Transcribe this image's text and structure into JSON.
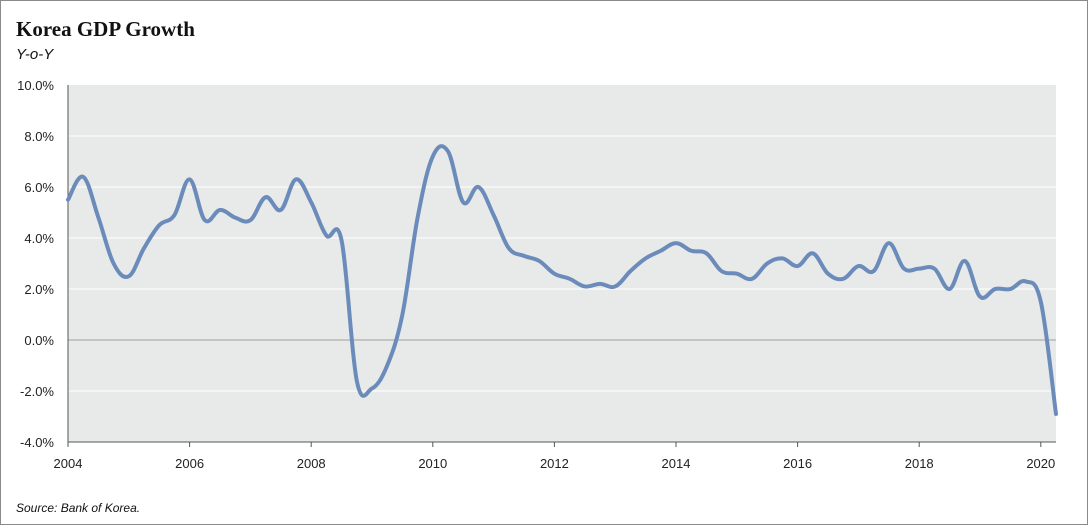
{
  "chart_data": {
    "type": "line",
    "title": "Korea GDP Growth",
    "subtitle": "Y-o-Y",
    "source": "Source: Bank of Korea.",
    "ylim": [
      -4,
      10
    ],
    "xlim": [
      2004,
      2020.25
    ],
    "grid": true,
    "y_ticks": [
      {
        "value": 10,
        "label": "10.0%"
      },
      {
        "value": 8,
        "label": "8.0%"
      },
      {
        "value": 6,
        "label": "6.0%"
      },
      {
        "value": 4,
        "label": "4.0%"
      },
      {
        "value": 2,
        "label": "2.0%"
      },
      {
        "value": 0,
        "label": "0.0%"
      },
      {
        "value": -2,
        "label": "-2.0%"
      },
      {
        "value": -4,
        "label": "-4.0%"
      }
    ],
    "x_ticks": [
      {
        "value": 2004,
        "label": "2004"
      },
      {
        "value": 2006,
        "label": "2006"
      },
      {
        "value": 2008,
        "label": "2008"
      },
      {
        "value": 2010,
        "label": "2010"
      },
      {
        "value": 2012,
        "label": "2012"
      },
      {
        "value": 2014,
        "label": "2014"
      },
      {
        "value": 2016,
        "label": "2016"
      },
      {
        "value": 2018,
        "label": "2018"
      },
      {
        "value": 2020,
        "label": "2020"
      }
    ],
    "line_color": "#6b8cba",
    "plot_background": "#e8e9e9",
    "series": [
      {
        "x": [
          2004.0,
          2004.25,
          2004.5,
          2004.75,
          2005.0,
          2005.25,
          2005.5,
          2005.75,
          2006.0,
          2006.25,
          2006.5,
          2006.75,
          2007.0,
          2007.25,
          2007.5,
          2007.75,
          2008.0,
          2008.25,
          2008.5,
          2008.75,
          2009.0,
          2009.25,
          2009.5,
          2009.75,
          2010.0,
          2010.25,
          2010.5,
          2010.75,
          2011.0,
          2011.25,
          2011.5,
          2011.75,
          2012.0,
          2012.25,
          2012.5,
          2012.75,
          2013.0,
          2013.25,
          2013.5,
          2013.75,
          2014.0,
          2014.25,
          2014.5,
          2014.75,
          2015.0,
          2015.25,
          2015.5,
          2015.75,
          2016.0,
          2016.25,
          2016.5,
          2016.75,
          2017.0,
          2017.25,
          2017.5,
          2017.75,
          2018.0,
          2018.25,
          2018.5,
          2018.75,
          2019.0,
          2019.25,
          2019.5,
          2019.75,
          2020.0,
          2020.25
        ],
        "y": [
          5.5,
          6.4,
          4.8,
          3.0,
          2.5,
          3.6,
          4.5,
          4.9,
          6.3,
          4.7,
          5.1,
          4.8,
          4.7,
          5.6,
          5.1,
          6.3,
          5.4,
          4.1,
          3.9,
          -1.6,
          -1.9,
          -1.0,
          1.0,
          4.8,
          7.2,
          7.4,
          5.4,
          6.0,
          4.9,
          3.6,
          3.3,
          3.1,
          2.6,
          2.4,
          2.1,
          2.2,
          2.1,
          2.7,
          3.2,
          3.5,
          3.8,
          3.5,
          3.4,
          2.7,
          2.6,
          2.4,
          3.0,
          3.2,
          2.9,
          3.4,
          2.6,
          2.4,
          2.9,
          2.7,
          3.8,
          2.8,
          2.8,
          2.8,
          2.0,
          3.1,
          1.7,
          2.0,
          2.0,
          2.3,
          1.5,
          -2.9
        ]
      }
    ]
  }
}
